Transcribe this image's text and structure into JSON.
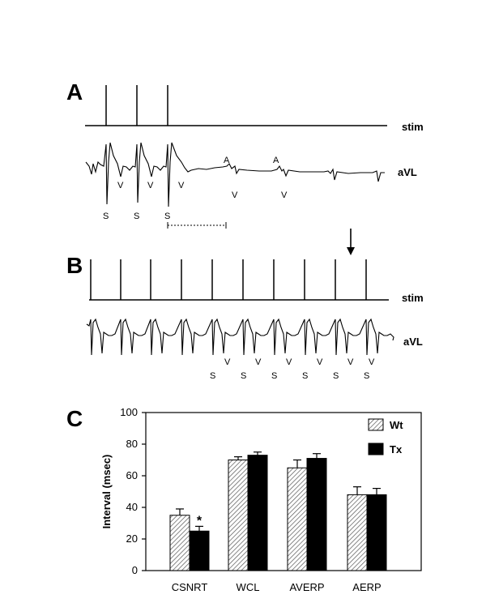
{
  "panels": {
    "a": {
      "letter": "A",
      "stim_label": "stim",
      "ecg_label": "aVL",
      "atrial_labels": [
        "A",
        "A"
      ],
      "ventricular_labels": [
        "V",
        "V",
        "V",
        "V",
        "V"
      ],
      "stim_labels": [
        "S",
        "S",
        "S"
      ]
    },
    "b": {
      "letter": "B",
      "stim_label": "stim",
      "ecg_label": "aVL",
      "ventricular_labels": [
        "V",
        "V",
        "V",
        "V",
        "V",
        "V"
      ],
      "stim_labels": [
        "S",
        "S",
        "S",
        "S",
        "S",
        "S"
      ]
    },
    "c": {
      "letter": "C"
    }
  },
  "chart_data": {
    "type": "bar",
    "categories": [
      "CSNRT",
      "WCL",
      "AVERP",
      "AERP"
    ],
    "series": [
      {
        "name": "Wt",
        "values": [
          35,
          70,
          65,
          48
        ],
        "errors": [
          4,
          2,
          5,
          5
        ],
        "pattern": "hatched"
      },
      {
        "name": "Tx",
        "values": [
          25,
          73,
          71,
          48
        ],
        "errors": [
          3,
          2,
          3,
          4
        ],
        "pattern": "solid"
      }
    ],
    "ylabel": "Interval (msec)",
    "xlabel": "",
    "ylim": [
      0,
      100
    ],
    "yticks": [
      "0",
      "20",
      "40",
      "60",
      "80",
      "100"
    ],
    "annotations": [
      {
        "text": "*",
        "category": "CSNRT",
        "series": "Tx"
      }
    ],
    "legend_position": "top-right",
    "grid": false
  }
}
